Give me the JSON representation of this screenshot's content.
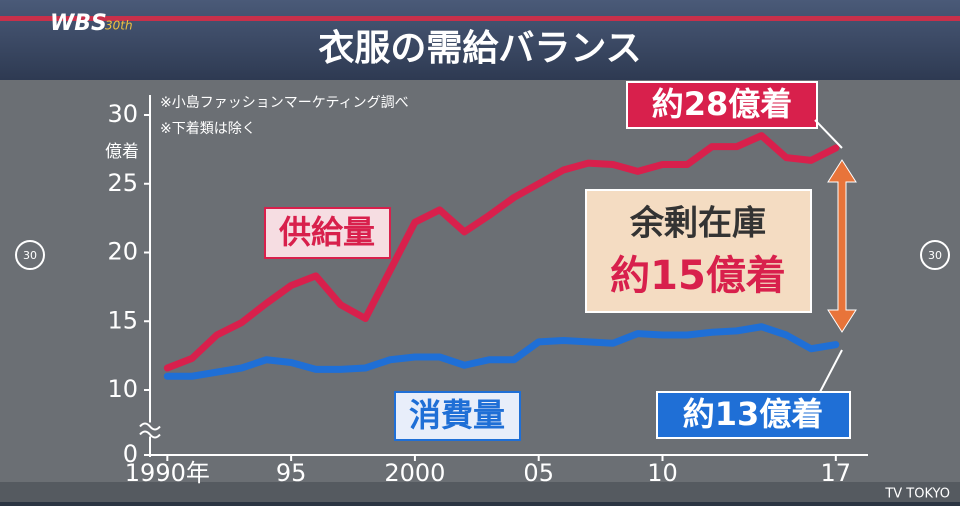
{
  "logo": "WBS",
  "logo_sub": "30th",
  "watermark": "TV TOKYO",
  "skip_back": "30",
  "skip_forward": "30",
  "chart_data": {
    "type": "line",
    "title": "衣服の需給バランス",
    "notes": [
      "※小島ファッションマーケティング調べ",
      "※下着類は除く"
    ],
    "y_unit": "億着",
    "x": [
      1990,
      1991,
      1992,
      1993,
      1994,
      1995,
      1996,
      1997,
      1998,
      1999,
      2000,
      2001,
      2002,
      2003,
      2004,
      2005,
      2006,
      2007,
      2008,
      2009,
      2010,
      2011,
      2012,
      2013,
      2014,
      2015,
      2016,
      2017
    ],
    "series": [
      {
        "name": "供給量",
        "color": "#d8204c",
        "values": [
          11.6,
          12.3,
          14.0,
          14.9,
          16.3,
          17.6,
          18.3,
          16.2,
          15.2,
          18.7,
          22.2,
          23.1,
          21.5,
          22.7,
          24.0,
          25.0,
          26.0,
          26.5,
          26.4,
          25.9,
          26.4,
          26.4,
          27.7,
          27.7,
          28.5,
          26.9,
          26.7,
          27.6
        ]
      },
      {
        "name": "消費量",
        "color": "#1f6fd6",
        "values": [
          11.0,
          11.0,
          11.3,
          11.6,
          12.2,
          12.0,
          11.5,
          11.5,
          11.6,
          12.2,
          12.4,
          12.4,
          11.8,
          12.2,
          12.2,
          13.5,
          13.6,
          13.5,
          13.4,
          14.1,
          14.0,
          14.0,
          14.2,
          14.3,
          14.6,
          14.0,
          13.0,
          13.3
        ]
      }
    ],
    "annotations": [
      "約28億着",
      "約13億着",
      "余剰在庫",
      "約15億着"
    ],
    "xlim": [
      1989.3,
      2018.3
    ],
    "xticks": [
      {
        "value": 1990,
        "label": "1990年"
      },
      {
        "value": 1995,
        "label": "95"
      },
      2000,
      {
        "value": 2005,
        "label": "05"
      },
      {
        "value": 2010,
        "label": "10"
      },
      {
        "value": 2017,
        "label": "17"
      }
    ],
    "ylim": [
      0,
      30
    ],
    "yticks": [
      0,
      10,
      15,
      20,
      25,
      30
    ],
    "axis_break": [
      0,
      10
    ],
    "grid": false
  }
}
